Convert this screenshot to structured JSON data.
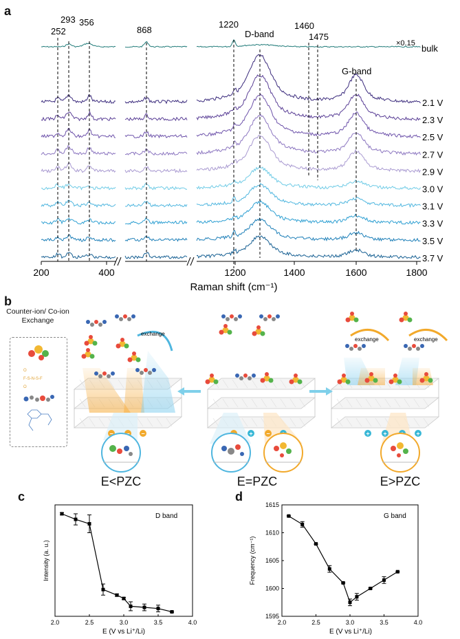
{
  "panel_labels": {
    "a": "a",
    "b": "b",
    "c": "c",
    "d": "d"
  },
  "panel_a": {
    "peak_labels": [
      "252",
      "293",
      "356",
      "868",
      "1220",
      "1460",
      "1475"
    ],
    "band_labels": {
      "d": "D-band",
      "g": "G-band"
    },
    "bulk_label": "bulk",
    "bulk_scale": "×0.15",
    "voltages": [
      "2.1 V",
      "2.3 V",
      "2.5 V",
      "2.7 V",
      "2.9 V",
      "3.0 V",
      "3.1 V",
      "3.3 V",
      "3.5 V",
      "3.7 V"
    ],
    "trace_colors": [
      "#3a2a7c",
      "#5a3f96",
      "#6d52aa",
      "#8c76c0",
      "#a99ad1",
      "#6fcbe6",
      "#4fb6df",
      "#2d9fd2",
      "#1d7fb8",
      "#165f92"
    ],
    "bulk_color": "#1f7a78",
    "x_ticks": [
      "200",
      "400",
      "1200",
      "1400",
      "1600",
      "1800"
    ],
    "x_axis_label": "Raman shift (cm⁻¹)"
  },
  "panel_b": {
    "side_title": "Counter-ion/ Co-ion Exchange",
    "exchange_label": "exchange",
    "state_labels": [
      "E<PZC",
      "E=PZC",
      "E>PZC"
    ],
    "minus_sign": "−",
    "plus_sign": "+"
  },
  "panel_c": {
    "legend": "D band",
    "ylabel": "Intensity (a. u.)",
    "xlabel": "E (V vs Li⁺/Li)",
    "x_ticks": [
      "2.0",
      "2.5",
      "3.0",
      "3.5",
      "4.0"
    ]
  },
  "panel_d": {
    "legend": "G band",
    "ylabel": "Frequency (cm⁻¹)",
    "xlabel": "E (V vs Li⁺/Li)",
    "x_ticks": [
      "2.0",
      "2.5",
      "3.0",
      "3.5",
      "4.0"
    ],
    "y_ticks": [
      "1595",
      "1600",
      "1605",
      "1610",
      "1615"
    ]
  },
  "chart_data": [
    {
      "type": "line",
      "title": "D band",
      "xlabel": "E (V vs Li+/Li)",
      "ylabel": "Intensity (a. u.)",
      "xlim": [
        2.0,
        4.0
      ],
      "ylim": [
        0,
        1
      ],
      "x": [
        2.1,
        2.3,
        2.5,
        2.7,
        2.9,
        3.0,
        3.1,
        3.3,
        3.5,
        3.7
      ],
      "values": [
        0.92,
        0.87,
        0.83,
        0.24,
        0.19,
        0.16,
        0.09,
        0.08,
        0.07,
        0.04
      ],
      "errors": [
        0.01,
        0.05,
        0.08,
        0.05,
        0.01,
        0.01,
        0.04,
        0.03,
        0.03,
        0.005
      ]
    },
    {
      "type": "line",
      "title": "G band",
      "xlabel": "E (V vs Li+/Li)",
      "ylabel": "Frequency (cm-1)",
      "xlim": [
        2.0,
        4.0
      ],
      "ylim": [
        1595,
        1615
      ],
      "x": [
        2.1,
        2.3,
        2.5,
        2.7,
        2.9,
        3.0,
        3.1,
        3.3,
        3.5,
        3.7
      ],
      "values": [
        1613.0,
        1611.5,
        1608.0,
        1603.5,
        1601.0,
        1597.5,
        1598.5,
        1600.0,
        1601.5,
        1603.0
      ],
      "errors": [
        0.1,
        0.5,
        0.1,
        0.6,
        0.1,
        0.6,
        0.6,
        0.1,
        0.6,
        0.1
      ]
    }
  ]
}
